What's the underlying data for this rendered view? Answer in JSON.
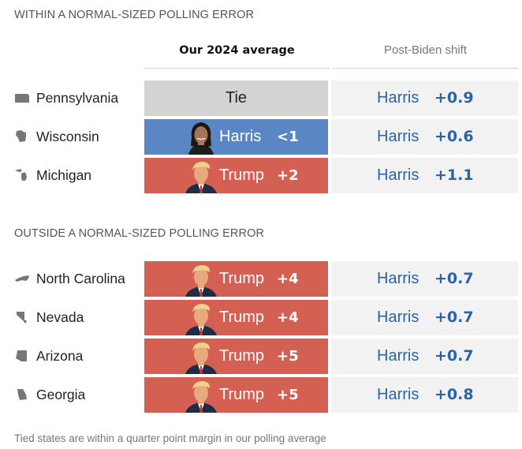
{
  "sections": [
    {
      "title": "WITHIN A NORMAL-SIZED POLLING ERROR"
    },
    {
      "title": "OUTSIDE A NORMAL-SIZED POLLING ERROR"
    }
  ],
  "columns": {
    "average": "Our 2024 average",
    "shift": "Post-Biden shift"
  },
  "chart_data": {
    "type": "table",
    "columns": [
      "Our 2024 average",
      "Post-Biden shift"
    ],
    "rows": [
      {
        "state": "Pennsylvania",
        "section": 0,
        "leader": "Tie",
        "margin": "",
        "shift_candidate": "Harris",
        "shift": "+0.9",
        "icon": "pennsylvania-shape-icon"
      },
      {
        "state": "Wisconsin",
        "section": 0,
        "leader": "Harris",
        "margin": "<1",
        "shift_candidate": "Harris",
        "shift": "+0.6",
        "icon": "wisconsin-shape-icon"
      },
      {
        "state": "Michigan",
        "section": 0,
        "leader": "Trump",
        "margin": "+2",
        "shift_candidate": "Harris",
        "shift": "+1.1",
        "icon": "michigan-shape-icon"
      },
      {
        "state": "North Carolina",
        "section": 1,
        "leader": "Trump",
        "margin": "+4",
        "shift_candidate": "Harris",
        "shift": "+0.7",
        "icon": "north-carolina-shape-icon"
      },
      {
        "state": "Nevada",
        "section": 1,
        "leader": "Trump",
        "margin": "+4",
        "shift_candidate": "Harris",
        "shift": "+0.7",
        "icon": "nevada-shape-icon"
      },
      {
        "state": "Arizona",
        "section": 1,
        "leader": "Trump",
        "margin": "+5",
        "shift_candidate": "Harris",
        "shift": "+0.7",
        "icon": "arizona-shape-icon"
      },
      {
        "state": "Georgia",
        "section": 1,
        "leader": "Trump",
        "margin": "+5",
        "shift_candidate": "Harris",
        "shift": "+0.8",
        "icon": "georgia-shape-icon"
      }
    ]
  },
  "colors": {
    "tie": "#d3d3d3",
    "harris": "#5b86c5",
    "trump": "#d45f53",
    "shift_bg": "#f2f2f2",
    "shift_text": "#2b63a8"
  },
  "footnote": "Tied states are within a quarter point margin in our polling average"
}
